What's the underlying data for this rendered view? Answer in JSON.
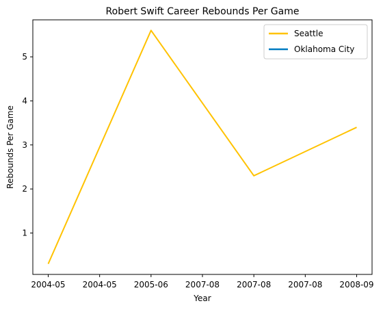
{
  "chart_data": {
    "type": "line",
    "title": "Robert Swift Career Rebounds Per Game",
    "xlabel": "Year",
    "ylabel": "Rebounds Per Game",
    "x_categories": [
      "2004-05",
      "2004-05",
      "2005-06",
      "2007-08",
      "2007-08",
      "2007-08",
      "2008-09"
    ],
    "ylim": [
      0.06,
      5.84
    ],
    "y_ticks": [
      1,
      2,
      3,
      4,
      5
    ],
    "grid": false,
    "legend_position": "upper right",
    "series": [
      {
        "name": "Seattle",
        "color": "#FFC200",
        "points": [
          {
            "x_index": 0,
            "y": 0.3
          },
          {
            "x_index": 2,
            "y": 5.6
          },
          {
            "x_index": 4,
            "y": 2.3
          },
          {
            "x_index": 6,
            "y": 3.4
          }
        ]
      },
      {
        "name": "Oklahoma City",
        "color": "#007AC1",
        "points": []
      }
    ]
  }
}
